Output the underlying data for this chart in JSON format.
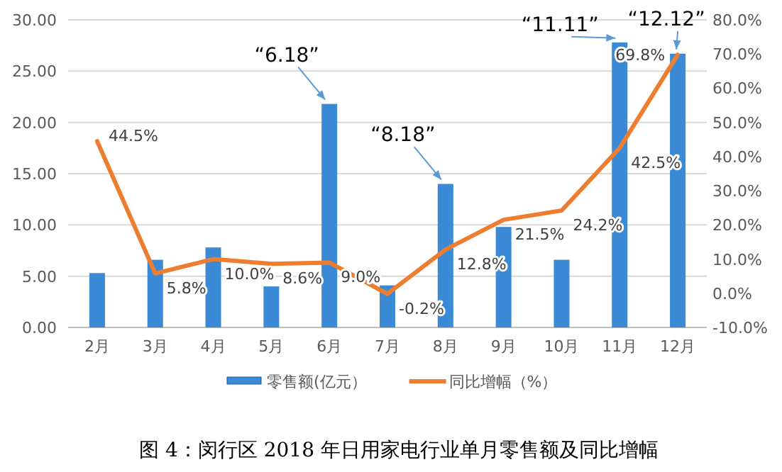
{
  "chart_data": {
    "type": "bar",
    "title": "图 4：闵行区 2018 年日用家电行业单月零售额及同比增幅",
    "categories": [
      "2月",
      "3月",
      "4月",
      "5月",
      "6月",
      "7月",
      "8月",
      "9月",
      "10月",
      "11月",
      "12月"
    ],
    "series": [
      {
        "name": "零售额(亿元）",
        "color": "#3a8ad6",
        "values": [
          5.3,
          6.6,
          7.8,
          4.0,
          21.8,
          4.1,
          14.0,
          9.8,
          6.6,
          27.8,
          26.7
        ]
      },
      {
        "name": "同比增幅（%）",
        "type": "line",
        "axis": "y2",
        "color": "#ed7d31",
        "values": [
          44.5,
          5.8,
          10.0,
          8.6,
          9.0,
          -0.2,
          12.8,
          21.5,
          24.2,
          42.5,
          69.8
        ],
        "value_labels": [
          "44.5%",
          "5.8%",
          "10.0%",
          "8.6%",
          "9.0%",
          "-0.2%",
          "12.8%",
          "21.5%",
          "24.2%",
          "42.5%",
          "69.8%"
        ]
      }
    ],
    "ylim": [
      0,
      30
    ],
    "yticks": [
      {
        "value": 0,
        "label": "0.00"
      },
      {
        "value": 5,
        "label": "5.00"
      },
      {
        "value": 10,
        "label": "10.00"
      },
      {
        "value": 15,
        "label": "15.00"
      },
      {
        "value": 20,
        "label": "20.00"
      },
      {
        "value": 25,
        "label": "25.00"
      },
      {
        "value": 30,
        "label": "30.00"
      }
    ],
    "y2lim": [
      -10,
      80
    ],
    "y2ticks": [
      {
        "value": -10,
        "label": "-10.0%"
      },
      {
        "value": 0,
        "label": "0.0%"
      },
      {
        "value": 10,
        "label": "10.0%"
      },
      {
        "value": 20,
        "label": "20.0%"
      },
      {
        "value": 30,
        "label": "30.0%"
      },
      {
        "value": 40,
        "label": "40.0%"
      },
      {
        "value": 50,
        "label": "50.0%"
      },
      {
        "value": 60,
        "label": "60.0%"
      },
      {
        "value": 70,
        "label": "70.0%"
      },
      {
        "value": 80,
        "label": "80.0%"
      }
    ],
    "grid": "y",
    "legend": "bottom",
    "line_style": "solid",
    "marker": "none",
    "annotations": [
      {
        "text": "“6.18”",
        "x": "6月",
        "y": 21.8
      },
      {
        "text": "“8.18”",
        "x": "8月",
        "y": 14.0
      },
      {
        "text": "“11.11”",
        "x": "11月",
        "y": 27.8
      },
      {
        "text": "“12.12”",
        "x": "12月",
        "y": 26.7
      }
    ]
  }
}
